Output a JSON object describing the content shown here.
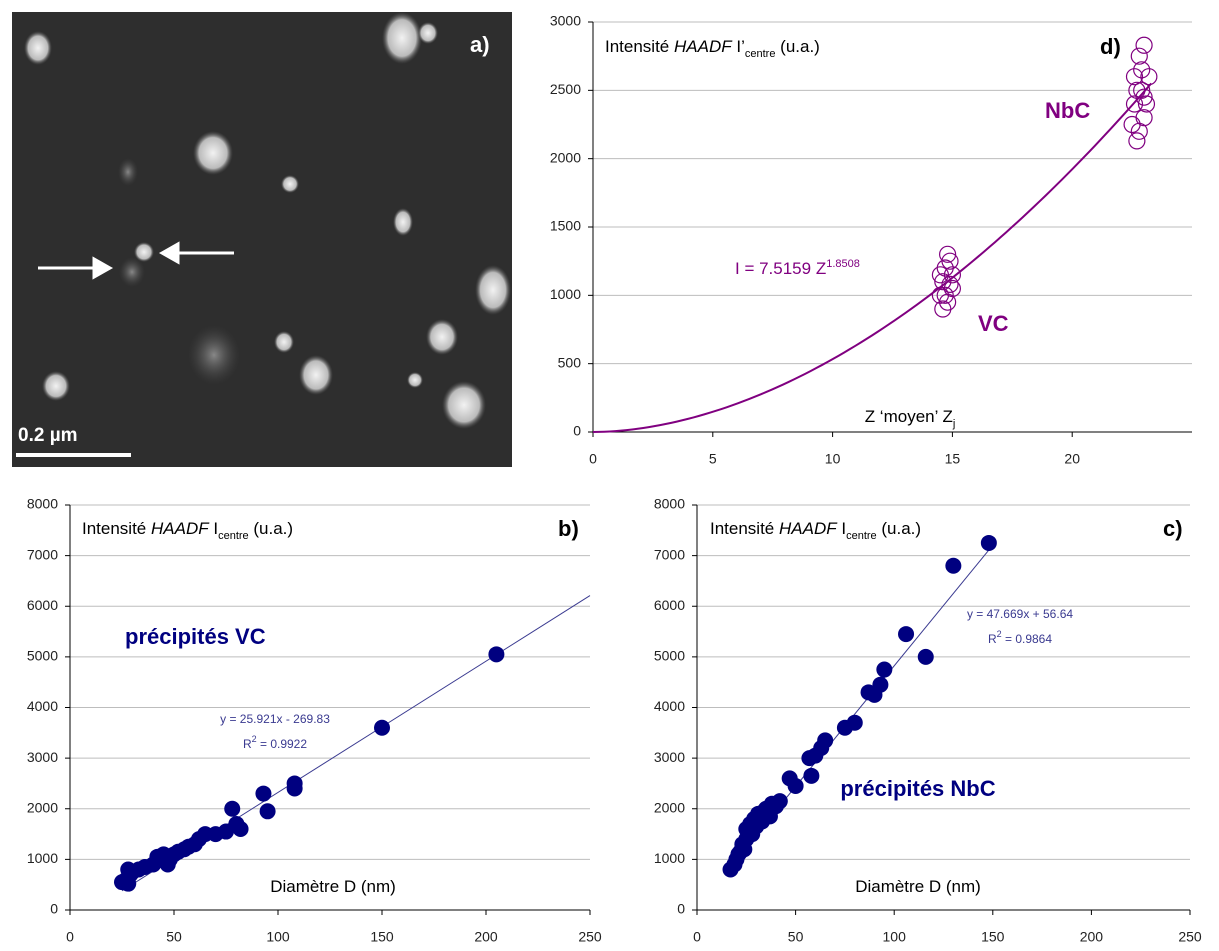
{
  "image": {
    "panel_label": "a)",
    "scale_bar": "0.2 µm"
  },
  "chart_data": [
    {
      "type": "scatter",
      "panel_label": "d)",
      "y_label": [
        "Intensité ",
        "HAADF",
        " I’",
        "centre",
        " (u.a.)"
      ],
      "x_label": [
        "Z ‘moyen’ Z",
        "j"
      ],
      "annotations": [
        "NbC",
        "VC"
      ],
      "xlim": [
        0,
        25
      ],
      "xticks": [
        0,
        5,
        10,
        15,
        20
      ],
      "ylim": [
        0,
        3000
      ],
      "yticks": [
        0,
        500,
        1000,
        1500,
        2000,
        2500,
        3000
      ],
      "grid": true,
      "series": [
        {
          "color": "#800080",
          "marker": "open",
          "x": [
            14.5,
            14.6,
            14.7,
            14.8,
            14.9,
            15,
            14.8,
            14.6,
            15,
            14.7,
            14.9,
            14.5,
            22.5,
            22.6,
            22.7,
            22.8,
            23,
            23.2,
            22.9,
            23,
            22.8,
            22.7,
            23.1,
            22.6,
            22.9,
            23
          ],
          "values": [
            1000,
            1100,
            1200,
            1300,
            1250,
            1050,
            950,
            900,
            1150,
            1000,
            1080,
            1150,
            2250,
            2400,
            2500,
            2750,
            2830,
            2600,
            2500,
            2300,
            2200,
            2130,
            2400,
            2600,
            2650,
            2450
          ]
        }
      ],
      "trend": {
        "kind": "power",
        "coef": 7.5159,
        "exp": 1.8508,
        "x_start": 0,
        "x_end": 23.3,
        "color": "#800080",
        "label": "I = 7.5159 Z",
        "label_sup": "1.8508"
      }
    },
    {
      "type": "scatter",
      "panel_label": "b)",
      "y_label": [
        "Intensité ",
        "HAADF",
        " I",
        "centre",
        " (u.a.)"
      ],
      "x_label": [
        "Diamètre D (nm)",
        ""
      ],
      "annotations": [
        "précipités VC"
      ],
      "xlim": [
        0,
        250
      ],
      "xticks": [
        0,
        50,
        100,
        150,
        200,
        250
      ],
      "ylim": [
        0,
        8000
      ],
      "yticks": [
        0,
        1000,
        2000,
        3000,
        4000,
        5000,
        6000,
        7000,
        8000
      ],
      "grid": true,
      "series": [
        {
          "color": "#000080",
          "marker": "filled",
          "x": [
            25,
            27,
            28,
            29,
            30,
            28,
            33,
            36,
            40,
            42,
            44,
            45,
            47,
            48,
            50,
            52,
            55,
            57,
            60,
            62,
            65,
            70,
            75,
            78,
            80,
            82,
            93,
            95,
            108,
            108,
            150,
            205
          ],
          "values": [
            550,
            600,
            520,
            700,
            750,
            800,
            800,
            850,
            900,
            1050,
            1000,
            1100,
            900,
            1000,
            1100,
            1150,
            1200,
            1250,
            1300,
            1400,
            1500,
            1500,
            1550,
            2000,
            1700,
            1600,
            2300,
            1950,
            2400,
            2500,
            3600,
            5050
          ]
        }
      ],
      "trend": {
        "kind": "linear",
        "slope": 25.921,
        "intercept": -269.83,
        "x_start": 25,
        "x_end": 250,
        "color": "#3a3a90",
        "label": "y = 25.921x - 269.83",
        "r2_label": "R",
        "r2_sup": "2",
        "r2_value": " = 0.9922"
      }
    },
    {
      "type": "scatter",
      "panel_label": "c)",
      "y_label": [
        "Intensité ",
        "HAADF",
        " I",
        "centre",
        "    (u.a.)"
      ],
      "x_label": [
        "Diamètre D (nm)",
        ""
      ],
      "annotations": [
        "précipités NbC"
      ],
      "xlim": [
        0,
        250
      ],
      "xticks": [
        0,
        50,
        100,
        150,
        200,
        250
      ],
      "ylim": [
        0,
        8000
      ],
      "yticks": [
        0,
        1000,
        2000,
        3000,
        4000,
        5000,
        6000,
        7000,
        8000
      ],
      "grid": true,
      "series": [
        {
          "color": "#000080",
          "marker": "filled",
          "x": [
            17,
            19,
            20,
            21,
            22,
            23,
            24,
            25,
            25,
            27,
            28,
            29,
            30,
            31,
            33,
            34,
            35,
            37,
            38,
            40,
            42,
            47,
            50,
            57,
            58,
            60,
            63,
            65,
            75,
            80,
            87,
            90,
            93,
            95,
            106,
            116,
            130,
            148
          ],
          "values": [
            800,
            900,
            1000,
            1100,
            1150,
            1300,
            1200,
            1400,
            1600,
            1700,
            1500,
            1800,
            1650,
            1900,
            1750,
            1950,
            2000,
            1850,
            2100,
            2050,
            2150,
            2600,
            2450,
            3000,
            2650,
            3050,
            3200,
            3350,
            3600,
            3700,
            4300,
            4250,
            4450,
            4750,
            5450,
            5000,
            6800,
            7250
          ]
        }
      ],
      "trend": {
        "kind": "linear",
        "slope": 47.669,
        "intercept": 56.64,
        "x_start": 17,
        "x_end": 150,
        "color": "#3a3a90",
        "label": "y = 47.669x + 56.64",
        "r2_label": "R",
        "r2_sup": "2",
        "r2_value": " = 0.9864"
      }
    }
  ]
}
